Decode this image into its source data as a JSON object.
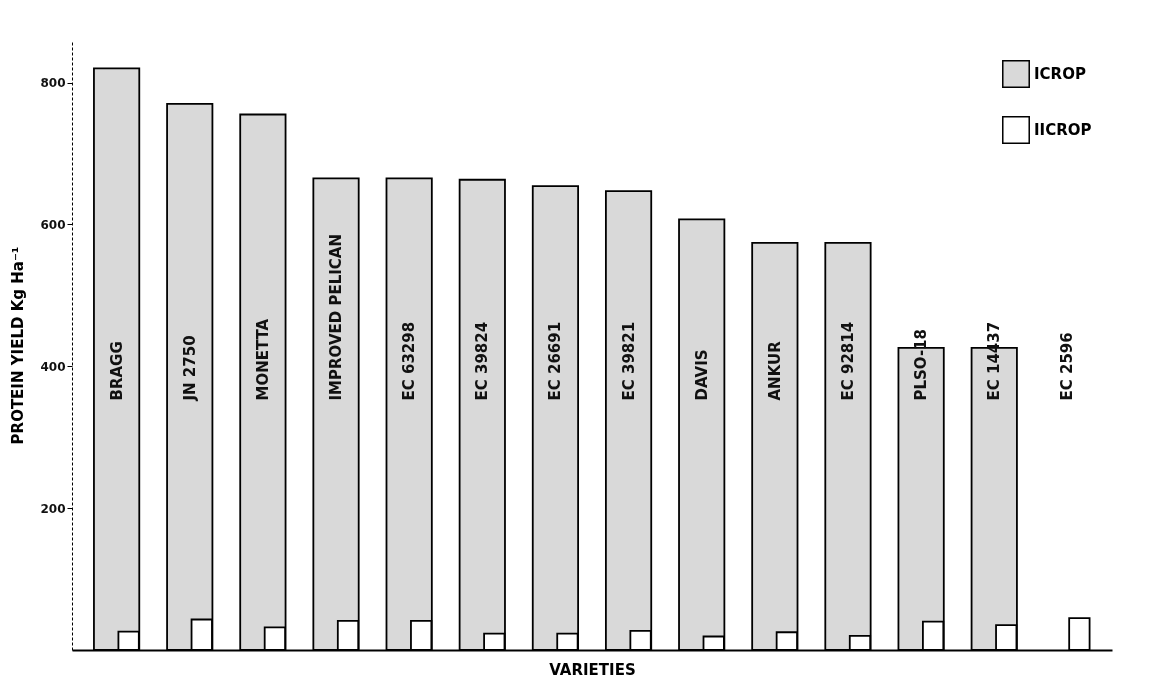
{
  "chart_data": {
    "type": "bar",
    "xlabel": "VARIETIES",
    "ylabel": "PROTEIN YIELD  Kg Ha⁻¹",
    "categories": [
      "BRAGG",
      "JN 2750",
      "MONETTA",
      "IMPROVED  PELICAN",
      "EC  63298",
      "EC 39824",
      "EC  26691",
      "EC  39821",
      "DAVIS",
      "ANKUR",
      "EC 92814",
      "PLSO-18",
      "EC 14437",
      "EC 2596"
    ],
    "series": [
      {
        "name": "ICROP",
        "color": "#d9d9d9",
        "values": [
          820,
          770,
          755,
          665,
          665,
          663,
          654,
          647,
          607,
          574,
          574,
          426,
          426,
          null
        ]
      },
      {
        "name": "IICROP",
        "color": "#ffffff",
        "values": [
          26,
          43,
          32,
          41,
          41,
          23,
          23,
          27,
          19,
          25,
          20,
          40,
          35,
          45
        ]
      }
    ],
    "ylim": [
      0,
      860
    ],
    "yticks": [
      200,
      400,
      600,
      800
    ],
    "legend": "top right"
  }
}
